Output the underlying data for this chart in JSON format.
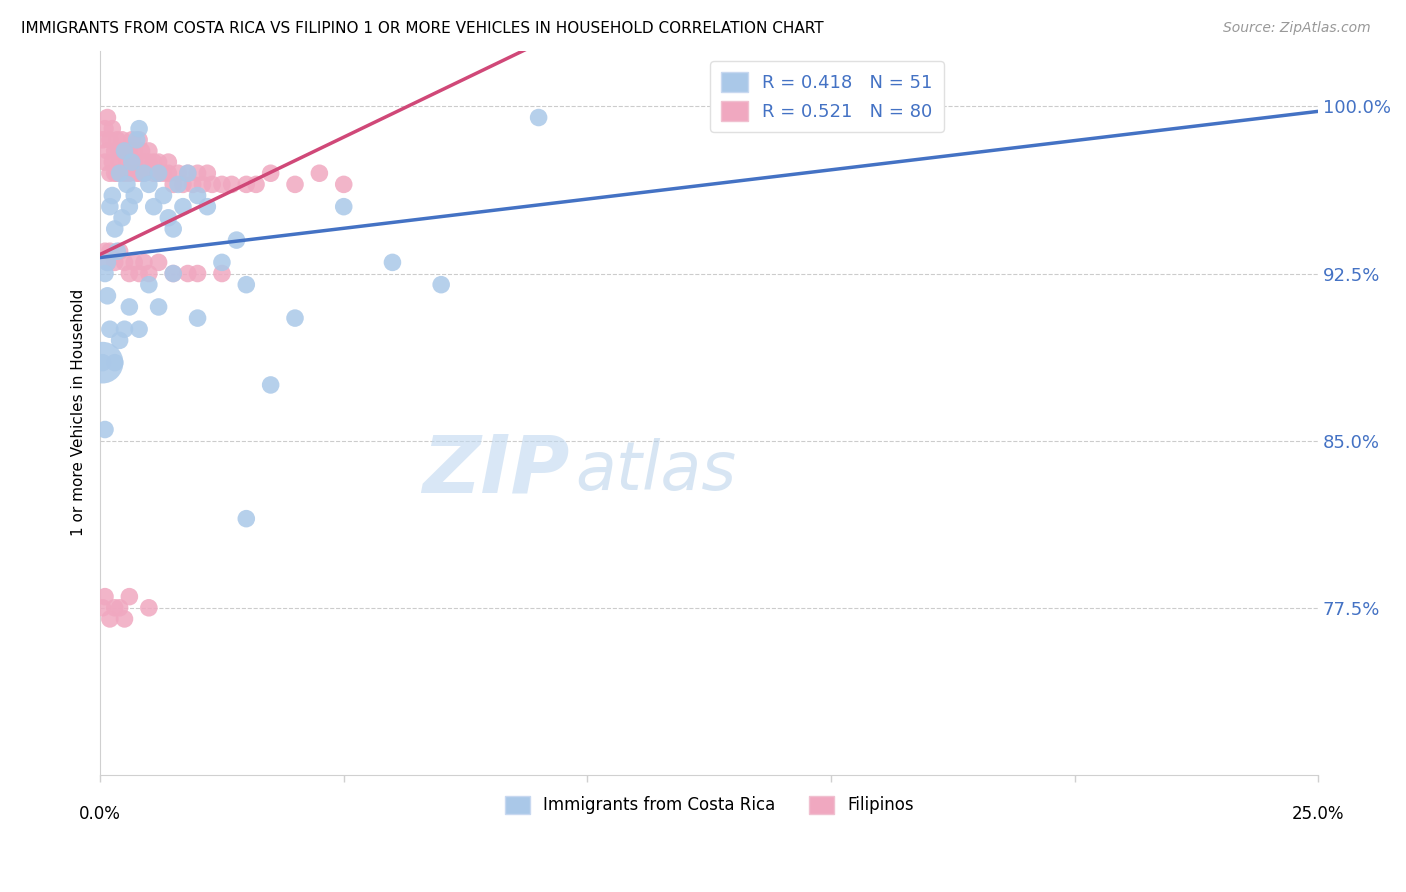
{
  "title": "IMMIGRANTS FROM COSTA RICA VS FILIPINO 1 OR MORE VEHICLES IN HOUSEHOLD CORRELATION CHART",
  "source": "Source: ZipAtlas.com",
  "ylabel": "1 or more Vehicles in Household",
  "xmin": 0.0,
  "xmax": 25.0,
  "ymin": 70.0,
  "ymax": 102.5,
  "yticks": [
    77.5,
    85.0,
    92.5,
    100.0
  ],
  "ytick_labels": [
    "77.5%",
    "85.0%",
    "92.5%",
    "100.0%"
  ],
  "blue_r": 0.418,
  "blue_n": 51,
  "pink_r": 0.521,
  "pink_n": 80,
  "blue_color": "#aac8e8",
  "pink_color": "#f0a8c0",
  "blue_line_color": "#4472c4",
  "pink_line_color": "#d04878",
  "legend_r_color": "#4472c4",
  "watermark_zip": "ZIP",
  "watermark_atlas": "atlas",
  "blue_label": "Immigrants from Costa Rica",
  "pink_label": "Filipinos",
  "blue_x": [
    0.1,
    0.15,
    0.2,
    0.25,
    0.3,
    0.35,
    0.4,
    0.45,
    0.5,
    0.55,
    0.6,
    0.65,
    0.7,
    0.75,
    0.8,
    0.9,
    1.0,
    1.1,
    1.2,
    1.3,
    1.4,
    1.5,
    1.6,
    1.7,
    1.8,
    2.0,
    2.2,
    2.5,
    2.8,
    3.0,
    3.5,
    4.0,
    5.0,
    6.0,
    7.0,
    9.0,
    0.05,
    0.1,
    0.15,
    0.2,
    0.3,
    0.4,
    0.5,
    0.6,
    0.8,
    1.0,
    1.2,
    1.5,
    2.0,
    3.0,
    14.0
  ],
  "blue_y": [
    92.5,
    93.0,
    95.5,
    96.0,
    94.5,
    93.5,
    97.0,
    95.0,
    98.0,
    96.5,
    95.5,
    97.5,
    96.0,
    98.5,
    99.0,
    97.0,
    96.5,
    95.5,
    97.0,
    96.0,
    95.0,
    94.5,
    96.5,
    95.5,
    97.0,
    96.0,
    95.5,
    93.0,
    94.0,
    92.0,
    87.5,
    90.5,
    95.5,
    93.0,
    92.0,
    99.5,
    88.5,
    85.5,
    91.5,
    90.0,
    88.5,
    89.5,
    90.0,
    91.0,
    90.0,
    92.0,
    91.0,
    92.5,
    90.5,
    81.5,
    99.5
  ],
  "pink_x": [
    0.05,
    0.1,
    0.1,
    0.15,
    0.15,
    0.2,
    0.2,
    0.25,
    0.25,
    0.3,
    0.3,
    0.35,
    0.35,
    0.4,
    0.4,
    0.45,
    0.5,
    0.5,
    0.55,
    0.6,
    0.6,
    0.65,
    0.7,
    0.7,
    0.75,
    0.8,
    0.8,
    0.85,
    0.9,
    0.9,
    1.0,
    1.0,
    1.1,
    1.1,
    1.2,
    1.2,
    1.3,
    1.4,
    1.4,
    1.5,
    1.6,
    1.7,
    1.8,
    1.9,
    2.0,
    2.1,
    2.2,
    2.3,
    2.5,
    2.7,
    3.0,
    3.2,
    3.5,
    4.0,
    4.5,
    5.0,
    0.1,
    0.15,
    0.2,
    0.3,
    0.4,
    0.5,
    0.6,
    0.7,
    0.8,
    0.9,
    1.0,
    1.2,
    1.5,
    1.8,
    2.0,
    2.5,
    0.05,
    0.1,
    0.2,
    0.3,
    0.4,
    0.5,
    0.6,
    1.0
  ],
  "pink_y": [
    98.5,
    99.0,
    97.5,
    98.0,
    99.5,
    97.0,
    98.5,
    97.5,
    99.0,
    98.0,
    97.0,
    98.5,
    97.0,
    98.0,
    97.5,
    98.5,
    97.0,
    98.0,
    97.5,
    98.0,
    97.0,
    98.5,
    97.5,
    98.0,
    97.0,
    98.5,
    97.0,
    98.0,
    97.5,
    97.0,
    97.5,
    98.0,
    97.0,
    97.5,
    97.0,
    97.5,
    97.0,
    97.5,
    97.0,
    96.5,
    97.0,
    96.5,
    97.0,
    96.5,
    97.0,
    96.5,
    97.0,
    96.5,
    96.5,
    96.5,
    96.5,
    96.5,
    97.0,
    96.5,
    97.0,
    96.5,
    93.5,
    93.0,
    93.5,
    93.0,
    93.5,
    93.0,
    92.5,
    93.0,
    92.5,
    93.0,
    92.5,
    93.0,
    92.5,
    92.5,
    92.5,
    92.5,
    77.5,
    78.0,
    77.0,
    77.5,
    77.5,
    77.0,
    78.0,
    77.5
  ],
  "blue_large_dot_x": 0.05,
  "blue_large_dot_y": 88.5
}
